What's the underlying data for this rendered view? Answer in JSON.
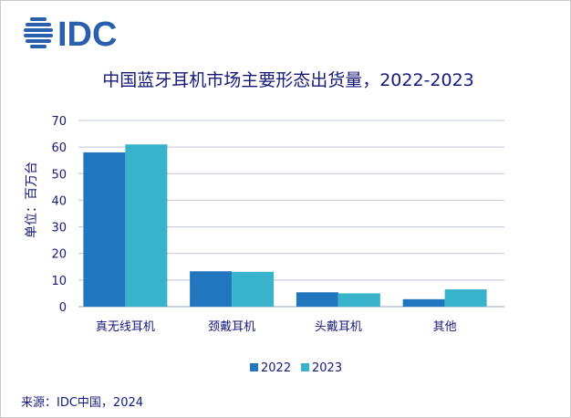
{
  "logo": {
    "text": "IDC"
  },
  "chart_data": {
    "type": "bar",
    "title": "中国蓝牙耳机市场主要形态出货量，2022-2023",
    "ylabel": "单位：百万台",
    "xlabel": "",
    "categories": [
      "真无线耳机",
      "颈戴耳机",
      "头戴耳机",
      "其他"
    ],
    "series": [
      {
        "name": "2022",
        "values": [
          58,
          13.3,
          5.4,
          2.8
        ],
        "color": "#2176bf"
      },
      {
        "name": "2023",
        "values": [
          61,
          13.1,
          5.0,
          6.5
        ],
        "color": "#39b2cc"
      }
    ],
    "ylim": [
      0,
      70
    ],
    "yticks": [
      0,
      10,
      20,
      30,
      40,
      50,
      60,
      70
    ],
    "grid": true,
    "legend_position": "bottom-center"
  },
  "source": "来源：IDC中国，2024",
  "colors": {
    "title": "#16197a",
    "grid": "#c0c4d8",
    "axis": "#9aa4c8",
    "logo": "#2a5fad"
  }
}
